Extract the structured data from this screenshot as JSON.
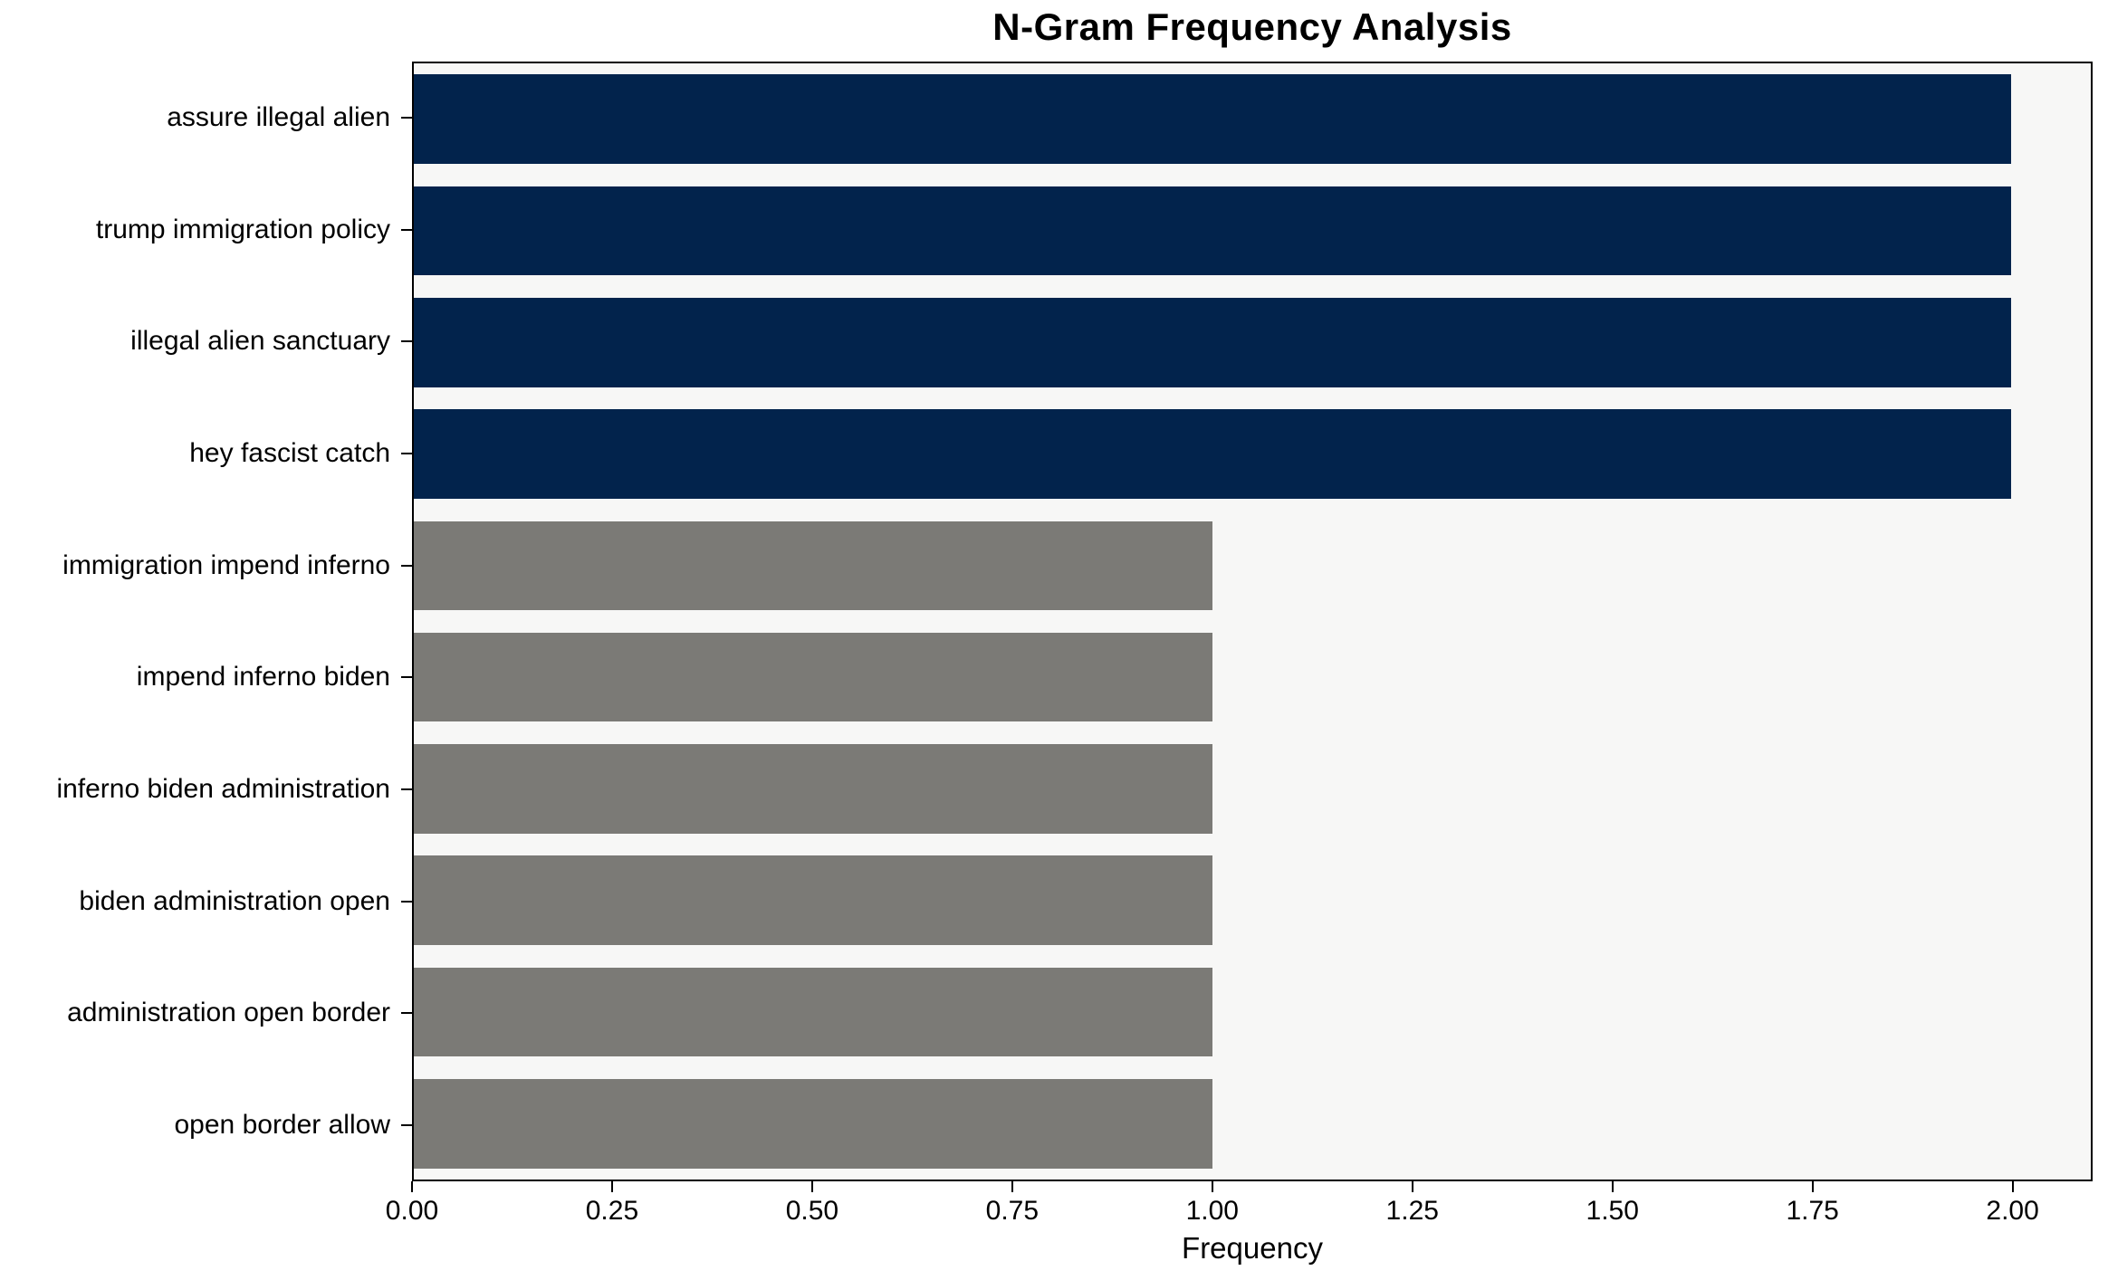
{
  "chart_data": {
    "type": "bar",
    "orientation": "horizontal",
    "title": "N-Gram Frequency Analysis",
    "xlabel": "Frequency",
    "ylabel": "",
    "categories": [
      "assure illegal alien",
      "trump immigration policy",
      "illegal alien sanctuary",
      "hey fascist catch",
      "immigration impend inferno",
      "impend inferno biden",
      "inferno biden administration",
      "biden administration open",
      "administration open border",
      "open border allow"
    ],
    "values": [
      2,
      2,
      2,
      2,
      1,
      1,
      1,
      1,
      1,
      1
    ],
    "bar_colors": [
      "#02234c",
      "#02234c",
      "#02234c",
      "#02234c",
      "#7b7a76",
      "#7b7a76",
      "#7b7a76",
      "#7b7a76",
      "#7b7a76",
      "#7b7a76"
    ],
    "x_ticks": [
      0,
      0.25,
      0.5,
      0.75,
      1.0,
      1.25,
      1.5,
      1.75,
      2.0
    ],
    "x_tick_labels": [
      "0.00",
      "0.25",
      "0.50",
      "0.75",
      "1.00",
      "1.25",
      "1.50",
      "1.75",
      "2.00"
    ],
    "xlim": [
      0,
      2.1
    ],
    "grid": false,
    "legend_position": "none",
    "plot_background": "#f7f7f6",
    "figure_background": "#ffffff",
    "colors": {
      "high_frequency_bar": "#02234c",
      "low_frequency_bar": "#7b7a76",
      "axis": "#000000"
    }
  }
}
